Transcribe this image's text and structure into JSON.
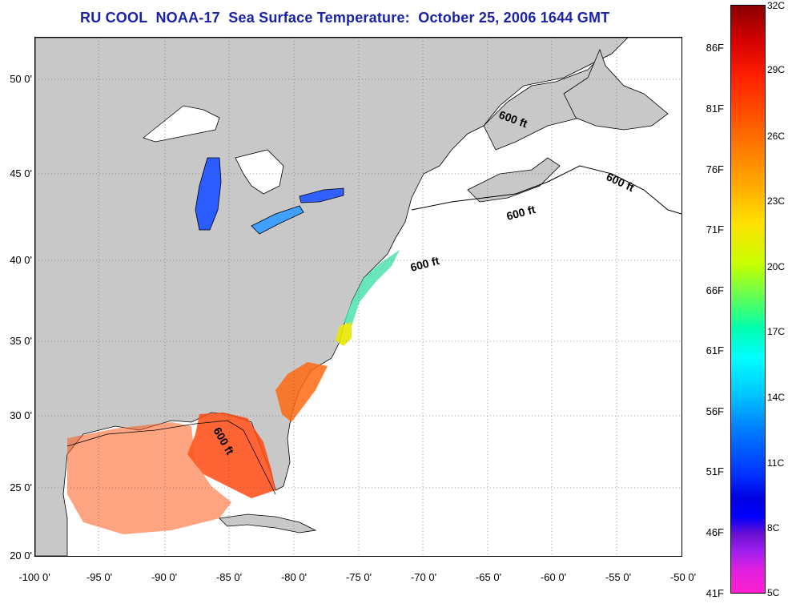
{
  "title": "RU COOL  NOAA-17  Sea Surface Temperature:  October 25, 2006 1644 GMT",
  "lat_labels": [
    "50 0'",
    "45 0'",
    "40 0'",
    "35 0'",
    "30 0'",
    "25 0'",
    "20 0'"
  ],
  "lon_labels": [
    "-100 0'",
    "-95 0'",
    "-90 0'",
    "-85 0'",
    "-80 0'",
    "-75 0'",
    "-70 0'",
    "-65 0'",
    "-60 0'",
    "-55 0'",
    "-50 0'"
  ],
  "colorbar_f": [
    "86F",
    "81F",
    "76F",
    "71F",
    "66F",
    "61F",
    "56F",
    "51F",
    "46F",
    "41F"
  ],
  "colorbar_c": [
    "32C",
    "29C",
    "26C",
    "23C",
    "20C",
    "17C",
    "14C",
    "11C",
    "8C",
    "5C"
  ],
  "isobath_labels": [
    "600 ft",
    "600 ft",
    "600 ft",
    "600 ft",
    "600 ft"
  ],
  "colors": {
    "land": "#c8c8c8",
    "ocean": "#ffffff",
    "title": "#1a22a8",
    "warm": "#ff4a10",
    "cool": "#1e6bff"
  },
  "colorbar_fill_level": 1.0
}
